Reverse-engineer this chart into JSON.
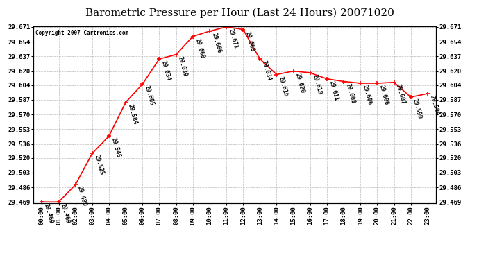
{
  "title": "Barometric Pressure per Hour (Last 24 Hours) 20071020",
  "copyright": "Copyright 2007 Cartronics.com",
  "hours": [
    "00:00",
    "01:00",
    "02:00",
    "03:00",
    "04:00",
    "05:00",
    "06:00",
    "07:00",
    "08:00",
    "09:00",
    "10:00",
    "11:00",
    "12:00",
    "13:00",
    "14:00",
    "15:00",
    "16:00",
    "17:00",
    "18:00",
    "19:00",
    "20:00",
    "21:00",
    "22:00",
    "23:00"
  ],
  "values": [
    29.469,
    29.469,
    29.489,
    29.525,
    29.545,
    29.584,
    29.605,
    29.634,
    29.639,
    29.66,
    29.666,
    29.671,
    29.668,
    29.634,
    29.616,
    29.62,
    29.618,
    29.611,
    29.608,
    29.606,
    29.606,
    29.607,
    29.59,
    29.594
  ],
  "line_color": "#ff0000",
  "marker_color": "#ff0000",
  "bg_color": "#ffffff",
  "plot_bg_color": "#ffffff",
  "grid_color": "#aaaaaa",
  "title_fontsize": 11,
  "tick_fontsize": 6.5,
  "annotation_fontsize": 6,
  "ylim_min": 29.469,
  "ylim_max": 29.671,
  "ytick_values": [
    29.469,
    29.486,
    29.503,
    29.52,
    29.536,
    29.553,
    29.57,
    29.587,
    29.604,
    29.62,
    29.637,
    29.654,
    29.671
  ]
}
